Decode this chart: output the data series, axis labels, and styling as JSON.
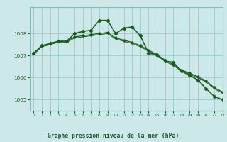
{
  "title": "Graphe pression niveau de la mer (hPa)",
  "background_color": "#cce8e8",
  "plot_bg_color": "#cce8e8",
  "grid_color": "#99cccc",
  "line_color": "#1a5c1a",
  "xlim": [
    -0.5,
    23
  ],
  "ylim": [
    1004.5,
    1009.2
  ],
  "yticks": [
    1005,
    1006,
    1007,
    1008
  ],
  "xticks": [
    0,
    1,
    2,
    3,
    4,
    5,
    6,
    7,
    8,
    9,
    10,
    11,
    12,
    13,
    14,
    15,
    16,
    17,
    18,
    19,
    20,
    21,
    22,
    23
  ],
  "series": [
    [
      1007.1,
      1007.45,
      1007.55,
      1007.65,
      1007.65,
      1008.0,
      1008.1,
      1008.15,
      1008.6,
      1008.6,
      1008.0,
      1008.25,
      1008.3,
      1007.9,
      1007.1,
      1007.05,
      1006.75,
      1006.7,
      1006.3,
      1006.1,
      1005.9,
      1005.5,
      1005.15,
      1005.0
    ],
    [
      1007.1,
      1007.45,
      1007.55,
      1007.65,
      1007.65,
      1007.85,
      1007.9,
      1007.95,
      1008.0,
      1008.05,
      1007.8,
      1007.7,
      1007.6,
      1007.45,
      1007.25,
      1007.05,
      1006.8,
      1006.6,
      1006.35,
      1006.2,
      1006.05,
      1005.85,
      1005.55,
      1005.35
    ],
    [
      1007.05,
      1007.4,
      1007.5,
      1007.6,
      1007.6,
      1007.8,
      1007.85,
      1007.9,
      1007.95,
      1008.0,
      1007.75,
      1007.65,
      1007.55,
      1007.4,
      1007.2,
      1007.0,
      1006.75,
      1006.55,
      1006.3,
      1006.15,
      1006.0,
      1005.8,
      1005.5,
      1005.3
    ]
  ]
}
